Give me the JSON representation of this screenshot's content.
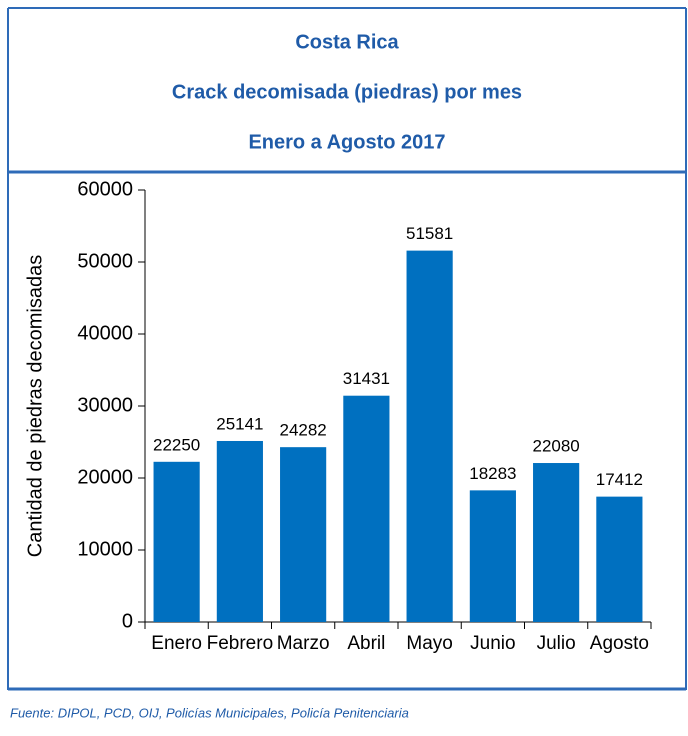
{
  "chart_data": {
    "type": "bar",
    "title": [
      "Costa Rica",
      "Crack decomisada (piedras) por mes",
      "Enero a Agosto 2017"
    ],
    "y_label": "Cantidad de piedras decomisadas",
    "categories": [
      "Enero",
      "Febrero",
      "Marzo",
      "Abril",
      "Mayo",
      "Junio",
      "Julio",
      "Agosto"
    ],
    "values": [
      22250,
      25141,
      24282,
      31431,
      51581,
      18283,
      22080,
      17412
    ],
    "color": "#0070c0",
    "ylim": [
      0,
      60000
    ],
    "yticks": [
      0,
      10000,
      20000,
      30000,
      40000,
      50000,
      60000
    ],
    "source": "Fuente: DIPOL, PCD, OIJ, Policías Municipales, Policía Penitenciaria"
  }
}
